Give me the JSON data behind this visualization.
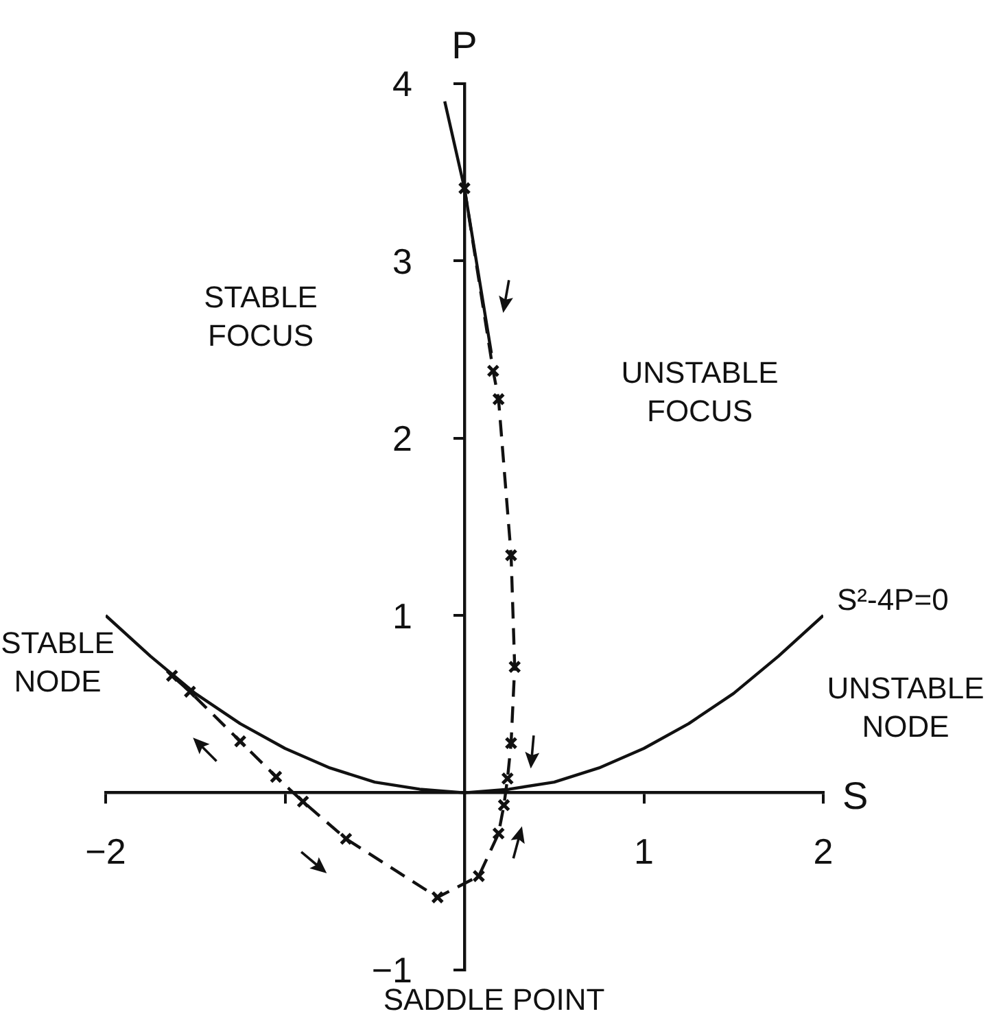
{
  "chart_data": {
    "type": "line",
    "xlabel": "S",
    "ylabel": "P",
    "xlim": [
      -2,
      2
    ],
    "xticks": [
      {
        "value": -2,
        "label": "−2"
      },
      {
        "value": -1,
        "label": null
      },
      1,
      2
    ],
    "ylim": [
      -1,
      4
    ],
    "yticks": [
      {
        "value": -1,
        "label": "−1"
      },
      1,
      2,
      3,
      4
    ],
    "grid": false,
    "legend": false,
    "series": [
      {
        "name": "S²-4P=0",
        "color": "#111111",
        "marker": "none",
        "line_style": "solid",
        "x": [
          -2,
          -1.75,
          -1.5,
          -1.25,
          -1,
          -0.75,
          -0.5,
          -0.25,
          0,
          0.25,
          0.5,
          0.75,
          1,
          1.25,
          1.5,
          1.75,
          2
        ],
        "values": [
          1,
          0.77,
          0.56,
          0.39,
          0.25,
          0.14,
          0.06,
          0.02,
          0,
          0.02,
          0.06,
          0.14,
          0.25,
          0.39,
          0.56,
          0.77,
          1
        ]
      },
      {
        "color": "#111111",
        "marker": "none",
        "line_style": "solid",
        "x": [
          -0.11,
          0,
          0.15
        ],
        "values": [
          3.9,
          3.41,
          2.48
        ]
      },
      {
        "color": "#111111",
        "marker": "cross",
        "line_style": "dashed",
        "x": [
          0,
          0.16,
          0.19,
          0.26,
          0.28,
          0.26,
          0.24,
          0.22,
          0.19,
          0.08,
          -0.15,
          -0.66,
          -0.9,
          -1.05,
          -1.25,
          -1.53,
          -1.63
        ],
        "values": [
          3.41,
          2.38,
          2.22,
          1.34,
          0.71,
          0.28,
          0.08,
          -0.07,
          -0.23,
          -0.47,
          -0.59,
          -0.26,
          -0.05,
          0.09,
          0.29,
          0.57,
          0.66
        ]
      }
    ],
    "annotations": [
      "STABLE FOCUS",
      "UNSTABLE FOCUS",
      "STABLE NODE",
      "UNSTABLE NODE",
      "SADDLE POINT"
    ]
  }
}
